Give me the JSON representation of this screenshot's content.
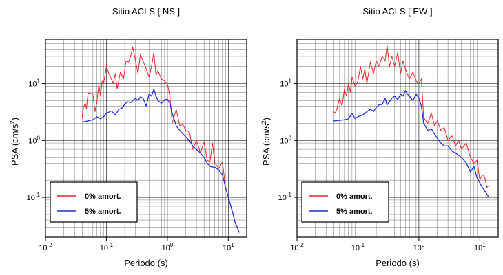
{
  "chart_data": [
    {
      "type": "line",
      "title": "Sitio ACLS [ NS ]",
      "xlabel": "Periodo (s)",
      "ylabel": {
        "text": "PSA (cm/s",
        "sup": "2",
        "close": ")"
      },
      "xscale": "log",
      "yscale": "log",
      "xlim": [
        0.01,
        20
      ],
      "ylim": [
        0.02,
        60
      ],
      "grid": true,
      "legend_position": "bottom-left",
      "x_ticks": [
        {
          "value": 0.01,
          "base": "10",
          "exp": "-2"
        },
        {
          "value": 0.1,
          "base": "10",
          "exp": "-1"
        },
        {
          "value": 1,
          "base": "10",
          "exp": "0"
        },
        {
          "value": 10,
          "base": "10",
          "exp": "1"
        }
      ],
      "y_ticks": [
        {
          "value": 0.1,
          "base": "10",
          "exp": "-1"
        },
        {
          "value": 1,
          "base": "10",
          "exp": "0"
        },
        {
          "value": 10,
          "base": "10",
          "exp": "1"
        }
      ],
      "series": [
        {
          "name": "0% amort.",
          "color": "#e8232a",
          "x": [
            0.04,
            0.042,
            0.045,
            0.047,
            0.05,
            0.055,
            0.06,
            0.065,
            0.07,
            0.075,
            0.08,
            0.085,
            0.09,
            0.1,
            0.11,
            0.12,
            0.13,
            0.14,
            0.15,
            0.17,
            0.19,
            0.21,
            0.23,
            0.25,
            0.27,
            0.3,
            0.33,
            0.36,
            0.4,
            0.45,
            0.5,
            0.55,
            0.6,
            0.65,
            0.7,
            0.8,
            0.9,
            1.0,
            1.1,
            1.2,
            1.4,
            1.6,
            1.8,
            2.0,
            2.3,
            2.6,
            3.0,
            3.5,
            4.0,
            4.5,
            5.0,
            5.5,
            6.0,
            7.0,
            8.0,
            9.0,
            10,
            11,
            12,
            13,
            14,
            15
          ],
          "y": [
            2.5,
            3.8,
            4.5,
            3.6,
            6.8,
            6.7,
            6.5,
            3.2,
            5.0,
            9.5,
            6.0,
            11.0,
            10.0,
            20.0,
            15.0,
            12.0,
            10.0,
            15.0,
            8.0,
            16.0,
            12.0,
            25.0,
            24.0,
            30.0,
            44.0,
            25.0,
            15.0,
            32.0,
            25.0,
            18.0,
            13.0,
            20.0,
            35.0,
            14.0,
            17.0,
            12.0,
            11.0,
            10.0,
            6.0,
            2.0,
            3.5,
            1.8,
            1.9,
            1.5,
            1.4,
            0.7,
            1.0,
            0.6,
            0.95,
            0.45,
            0.42,
            0.9,
            0.4,
            0.32,
            0.42,
            0.15,
            0.1,
            0.07,
            0.05,
            0.035,
            0.03,
            0.025
          ]
        },
        {
          "name": "5% amort.",
          "color": "#1f2fd4",
          "x": [
            0.04,
            0.05,
            0.06,
            0.07,
            0.08,
            0.09,
            0.1,
            0.12,
            0.14,
            0.16,
            0.18,
            0.2,
            0.22,
            0.25,
            0.28,
            0.3,
            0.33,
            0.36,
            0.4,
            0.45,
            0.5,
            0.55,
            0.6,
            0.65,
            0.7,
            0.8,
            0.9,
            1.0,
            1.1,
            1.2,
            1.4,
            1.6,
            1.8,
            2.0,
            2.3,
            2.6,
            3.0,
            3.5,
            4.0,
            4.5,
            5.0,
            5.5,
            6.0,
            7.0,
            8.0,
            9.0,
            10,
            11,
            12,
            13,
            14,
            15
          ],
          "y": [
            2.1,
            2.2,
            2.3,
            2.6,
            2.4,
            2.6,
            3.0,
            3.3,
            2.8,
            3.5,
            3.7,
            4.3,
            4.8,
            4.6,
            5.2,
            5.5,
            5.0,
            5.8,
            5.5,
            4.0,
            6.5,
            6.0,
            8.0,
            6.0,
            5.0,
            4.5,
            5.2,
            5.3,
            4.5,
            3.0,
            1.8,
            1.5,
            1.3,
            1.15,
            1.0,
            0.8,
            0.7,
            0.6,
            0.5,
            0.4,
            0.35,
            0.34,
            0.34,
            0.3,
            0.25,
            0.15,
            0.1,
            0.07,
            0.05,
            0.035,
            0.03,
            0.024
          ]
        }
      ]
    },
    {
      "type": "line",
      "title": "Sitio ACLS [ EW ]",
      "xlabel": "Periodo (s)",
      "ylabel": {
        "text": "PSA (cm/s",
        "sup": "2",
        "close": ")"
      },
      "xscale": "log",
      "yscale": "log",
      "xlim": [
        0.01,
        20
      ],
      "ylim": [
        0.02,
        60
      ],
      "grid": true,
      "legend_position": "bottom-left",
      "x_ticks": [
        {
          "value": 0.01,
          "base": "10",
          "exp": "-2"
        },
        {
          "value": 0.1,
          "base": "10",
          "exp": "-1"
        },
        {
          "value": 1,
          "base": "10",
          "exp": "0"
        },
        {
          "value": 10,
          "base": "10",
          "exp": "1"
        }
      ],
      "y_ticks": [
        {
          "value": 0.1,
          "base": "10",
          "exp": "-1"
        },
        {
          "value": 1,
          "base": "10",
          "exp": "0"
        },
        {
          "value": 10,
          "base": "10",
          "exp": "1"
        }
      ],
      "series": [
        {
          "name": "0% amort.",
          "color": "#e8232a",
          "x": [
            0.04,
            0.042,
            0.045,
            0.05,
            0.055,
            0.06,
            0.065,
            0.07,
            0.075,
            0.08,
            0.09,
            0.1,
            0.11,
            0.12,
            0.13,
            0.14,
            0.16,
            0.18,
            0.2,
            0.22,
            0.25,
            0.28,
            0.3,
            0.33,
            0.36,
            0.4,
            0.45,
            0.5,
            0.55,
            0.6,
            0.7,
            0.8,
            0.9,
            1.0,
            1.1,
            1.2,
            1.4,
            1.6,
            1.8,
            2.0,
            2.3,
            2.6,
            3.0,
            3.5,
            4.0,
            4.5,
            5.0,
            6.0,
            7.0,
            8.0,
            9.0,
            10,
            11,
            12,
            13,
            14
          ],
          "y": [
            3.2,
            3.0,
            3.5,
            5.5,
            4.0,
            8.0,
            6.0,
            10.0,
            7.0,
            13.0,
            9.0,
            11.0,
            20.0,
            12.0,
            18.0,
            10.0,
            24.0,
            15.0,
            25.0,
            20.0,
            30.0,
            25.0,
            47.0,
            20.0,
            30.0,
            20.0,
            35.0,
            15.0,
            25.0,
            18.0,
            12.0,
            16.0,
            11.0,
            10.0,
            12.0,
            2.5,
            2.0,
            3.0,
            1.8,
            2.2,
            1.5,
            1.7,
            1.0,
            1.2,
            0.8,
            1.0,
            0.7,
            0.9,
            0.5,
            0.4,
            0.45,
            0.2,
            0.25,
            0.23,
            0.15,
            0.16
          ]
        },
        {
          "name": "5% amort.",
          "color": "#1f2fd4",
          "x": [
            0.04,
            0.05,
            0.06,
            0.07,
            0.08,
            0.09,
            0.1,
            0.12,
            0.14,
            0.16,
            0.18,
            0.2,
            0.22,
            0.25,
            0.28,
            0.3,
            0.33,
            0.36,
            0.4,
            0.45,
            0.5,
            0.55,
            0.6,
            0.65,
            0.7,
            0.8,
            0.9,
            1.0,
            1.1,
            1.2,
            1.4,
            1.6,
            1.8,
            2.0,
            2.3,
            2.6,
            3.0,
            3.5,
            4.0,
            4.5,
            5.0,
            6.0,
            7.0,
            8.0,
            9.0,
            10,
            11,
            12,
            13,
            14
          ],
          "y": [
            2.2,
            2.25,
            2.3,
            2.4,
            3.0,
            2.4,
            2.6,
            2.8,
            3.2,
            3.5,
            3.2,
            3.8,
            4.2,
            4.3,
            5.5,
            4.2,
            4.8,
            5.5,
            6.0,
            5.2,
            6.5,
            6.0,
            7.5,
            6.5,
            6.0,
            5.0,
            6.5,
            5.5,
            4.0,
            2.0,
            1.5,
            1.6,
            1.3,
            1.1,
            0.9,
            0.8,
            0.8,
            0.65,
            0.6,
            0.55,
            0.5,
            0.4,
            0.28,
            0.35,
            0.22,
            0.18,
            0.15,
            0.13,
            0.115,
            0.1
          ]
        }
      ]
    }
  ]
}
